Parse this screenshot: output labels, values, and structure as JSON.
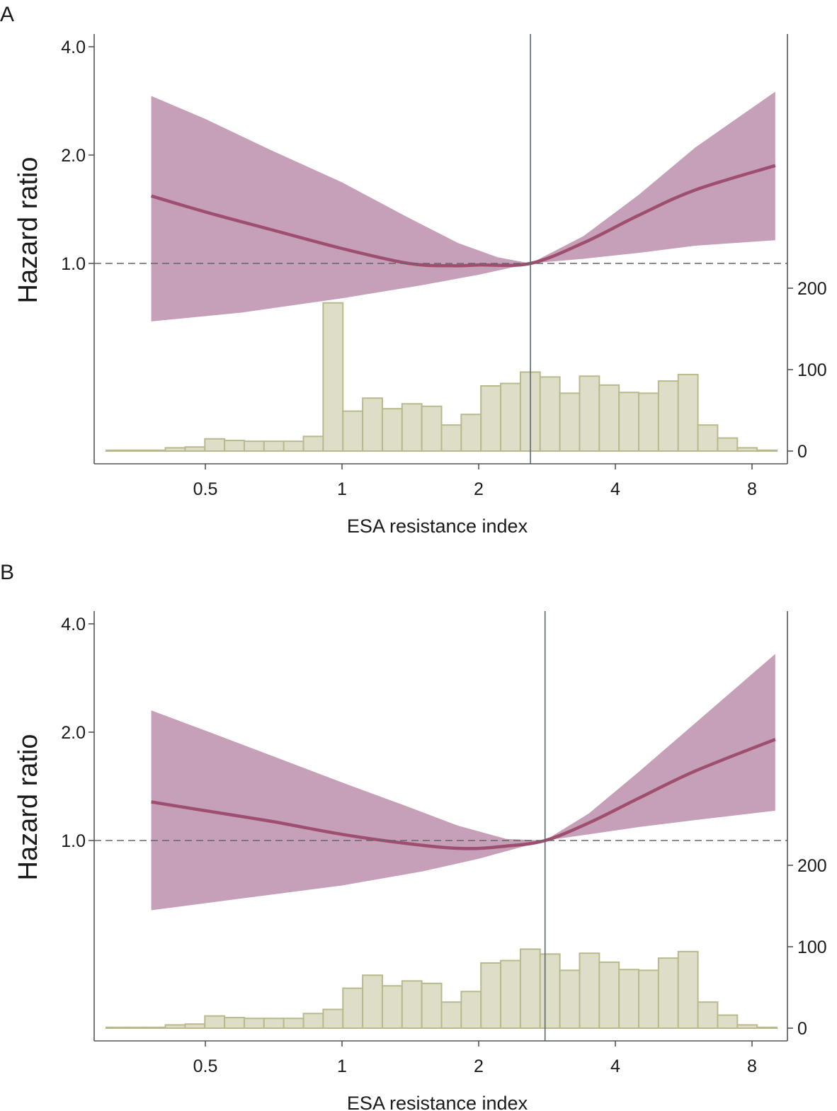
{
  "chart_data": [
    {
      "panel_label": "A",
      "type": "line",
      "xlabel": "ESA resistance index",
      "ylabel": "Hazard ratio",
      "x_scale": "log2",
      "xlim": [
        0.35,
        9.6
      ],
      "x_ticks": [
        0.5,
        1,
        2,
        4,
        8
      ],
      "x_tick_labels": [
        "0.5",
        "1",
        "2",
        "4",
        "8"
      ],
      "y_scale": "log2",
      "ylim": [
        0.53,
        4.6
      ],
      "y_ticks": [
        1,
        2,
        4
      ],
      "y_tick_labels": [
        "1.0",
        "2.0",
        "4.0"
      ],
      "reference_x": 2.6,
      "reference_y": 1.0,
      "curve": [
        {
          "x": 0.38,
          "y": 1.54
        },
        {
          "x": 0.5,
          "y": 1.39
        },
        {
          "x": 0.7,
          "y": 1.24
        },
        {
          "x": 1.0,
          "y": 1.1
        },
        {
          "x": 1.4,
          "y": 1.0
        },
        {
          "x": 1.75,
          "y": 0.985
        },
        {
          "x": 2.0,
          "y": 0.99
        },
        {
          "x": 2.6,
          "y": 1.0
        },
        {
          "x": 3.4,
          "y": 1.14
        },
        {
          "x": 4.5,
          "y": 1.36
        },
        {
          "x": 6.0,
          "y": 1.6
        },
        {
          "x": 9.0,
          "y": 1.87
        }
      ],
      "ci_upper": [
        {
          "x": 0.38,
          "y": 2.92
        },
        {
          "x": 0.5,
          "y": 2.52
        },
        {
          "x": 0.7,
          "y": 2.06
        },
        {
          "x": 1.0,
          "y": 1.68
        },
        {
          "x": 1.4,
          "y": 1.34
        },
        {
          "x": 1.8,
          "y": 1.14
        },
        {
          "x": 2.2,
          "y": 1.04
        },
        {
          "x": 2.6,
          "y": 1.0
        },
        {
          "x": 3.4,
          "y": 1.19
        },
        {
          "x": 4.5,
          "y": 1.55
        },
        {
          "x": 6.0,
          "y": 2.1
        },
        {
          "x": 9.0,
          "y": 3.0
        }
      ],
      "ci_lower": [
        {
          "x": 0.38,
          "y": 0.69
        },
        {
          "x": 0.6,
          "y": 0.73
        },
        {
          "x": 1.0,
          "y": 0.8
        },
        {
          "x": 1.5,
          "y": 0.87
        },
        {
          "x": 2.0,
          "y": 0.93
        },
        {
          "x": 2.6,
          "y": 1.0
        },
        {
          "x": 3.4,
          "y": 1.03
        },
        {
          "x": 4.5,
          "y": 1.07
        },
        {
          "x": 6.0,
          "y": 1.12
        },
        {
          "x": 9.0,
          "y": 1.16
        }
      ],
      "histogram": {
        "right_axis_ticks": [
          0,
          100,
          200
        ],
        "right_axis_tick_labels": [
          "0",
          "100",
          "200"
        ],
        "counts": [
          1,
          1,
          1,
          4,
          5,
          15,
          13,
          12,
          12,
          12,
          18,
          182,
          49,
          65,
          52,
          58,
          55,
          32,
          45,
          80,
          83,
          97,
          91,
          71,
          92,
          81,
          72,
          71,
          86,
          94,
          32,
          16,
          4,
          1
        ]
      }
    },
    {
      "panel_label": "B",
      "type": "line",
      "xlabel": "ESA resistance index",
      "ylabel": "Hazard ratio",
      "x_scale": "log2",
      "xlim": [
        0.35,
        9.6
      ],
      "x_ticks": [
        0.5,
        1,
        2,
        4,
        8
      ],
      "x_tick_labels": [
        "0.5",
        "1",
        "2",
        "4",
        "8"
      ],
      "y_scale": "log2",
      "ylim": [
        0.53,
        4.6
      ],
      "y_ticks": [
        1,
        2,
        4
      ],
      "y_tick_labels": [
        "1.0",
        "2.0",
        "4.0"
      ],
      "reference_x": 2.8,
      "reference_y": 1.0,
      "curve": [
        {
          "x": 0.38,
          "y": 1.28
        },
        {
          "x": 0.5,
          "y": 1.21
        },
        {
          "x": 0.7,
          "y": 1.13
        },
        {
          "x": 1.0,
          "y": 1.04
        },
        {
          "x": 1.4,
          "y": 0.98
        },
        {
          "x": 1.85,
          "y": 0.95
        },
        {
          "x": 2.3,
          "y": 0.965
        },
        {
          "x": 2.8,
          "y": 1.0
        },
        {
          "x": 3.5,
          "y": 1.12
        },
        {
          "x": 4.5,
          "y": 1.31
        },
        {
          "x": 6.0,
          "y": 1.56
        },
        {
          "x": 9.0,
          "y": 1.91
        }
      ],
      "ci_upper": [
        {
          "x": 0.38,
          "y": 2.3
        },
        {
          "x": 0.5,
          "y": 2.02
        },
        {
          "x": 0.7,
          "y": 1.72
        },
        {
          "x": 1.0,
          "y": 1.45
        },
        {
          "x": 1.4,
          "y": 1.24
        },
        {
          "x": 1.8,
          "y": 1.1
        },
        {
          "x": 2.3,
          "y": 1.01
        },
        {
          "x": 2.8,
          "y": 1.0
        },
        {
          "x": 3.5,
          "y": 1.19
        },
        {
          "x": 4.5,
          "y": 1.55
        },
        {
          "x": 6.0,
          "y": 2.12
        },
        {
          "x": 9.0,
          "y": 3.3
        }
      ],
      "ci_lower": [
        {
          "x": 0.38,
          "y": 0.64
        },
        {
          "x": 0.6,
          "y": 0.69
        },
        {
          "x": 1.0,
          "y": 0.75
        },
        {
          "x": 1.5,
          "y": 0.82
        },
        {
          "x": 2.0,
          "y": 0.89
        },
        {
          "x": 2.8,
          "y": 1.0
        },
        {
          "x": 3.5,
          "y": 1.04
        },
        {
          "x": 4.5,
          "y": 1.09
        },
        {
          "x": 6.0,
          "y": 1.14
        },
        {
          "x": 9.0,
          "y": 1.21
        }
      ],
      "histogram": {
        "right_axis_ticks": [
          0,
          100,
          200
        ],
        "right_axis_tick_labels": [
          "0",
          "100",
          "200"
        ],
        "counts": [
          1,
          1,
          1,
          4,
          5,
          15,
          13,
          12,
          12,
          12,
          18,
          23,
          49,
          65,
          52,
          58,
          55,
          32,
          45,
          80,
          83,
          97,
          91,
          71,
          92,
          81,
          72,
          71,
          86,
          94,
          32,
          16,
          4,
          1
        ]
      }
    }
  ],
  "colors": {
    "ci_band": "#c6a0b8",
    "curve": "#9e4e6e",
    "histogram_fill": "#dedec8",
    "histogram_stroke": "#b9b98e",
    "axis": "#555555",
    "reference_vertical": "#5a6870",
    "reference_dashed": "#666666"
  }
}
